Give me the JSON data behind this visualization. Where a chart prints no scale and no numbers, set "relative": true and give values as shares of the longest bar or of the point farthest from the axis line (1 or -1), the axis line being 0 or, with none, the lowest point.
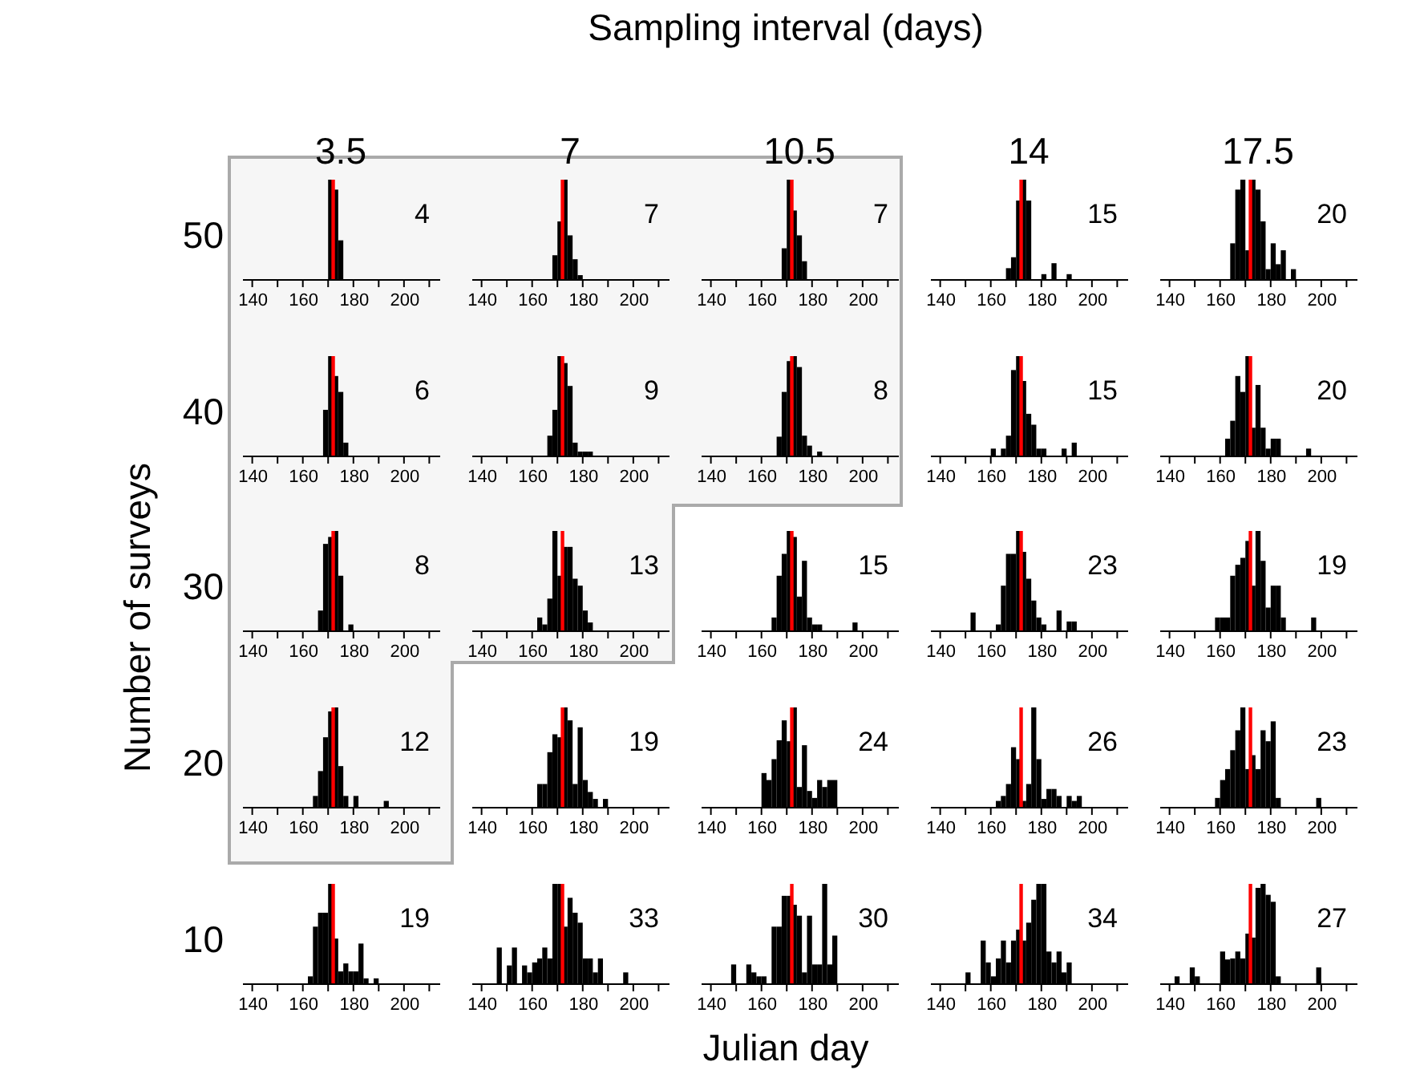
{
  "chart_data": [
    {
      "type": "other",
      "title": "Sampling interval (days)",
      "xlabel": "Julian day",
      "ylabel": "Number of surveys"
    },
    {
      "type": "bar",
      "relative": true,
      "title": "3.5",
      "ylabel": "50",
      "color": "#000000",
      "x": [
        171,
        173,
        175
      ],
      "values": [
        1,
        0.9,
        0.39
      ],
      "xlim": [
        136,
        214
      ],
      "xticks": [
        140,
        {
          "value": 150,
          "label": null
        },
        160,
        {
          "value": 170,
          "label": null
        },
        180,
        {
          "value": 190,
          "label": null
        },
        200,
        {
          "value": 210,
          "label": null
        }
      ],
      "ref_lines": [
        {
          "axis": "x",
          "value": 172,
          "color": "#ff0000"
        }
      ],
      "annotations": [
        "4"
      ]
    },
    {
      "type": "bar",
      "relative": true,
      "title": "7",
      "color": "#000000",
      "x": [
        169,
        171,
        173,
        175,
        177,
        179
      ],
      "values": [
        0.24,
        0.58,
        1,
        0.44,
        0.2,
        0.04
      ],
      "xlim": [
        136,
        214
      ],
      "xticks": [
        140,
        {
          "value": 150,
          "label": null
        },
        160,
        {
          "value": 170,
          "label": null
        },
        180,
        {
          "value": 190,
          "label": null
        },
        200,
        {
          "value": 210,
          "label": null
        }
      ],
      "ref_lines": [
        {
          "axis": "x",
          "value": 172,
          "color": "#ff0000"
        }
      ],
      "annotations": [
        "7"
      ]
    },
    {
      "type": "bar",
      "relative": true,
      "title": "10.5",
      "color": "#000000",
      "x": [
        169,
        171,
        173,
        175,
        177
      ],
      "values": [
        0.31,
        1,
        0.69,
        0.44,
        0.18
      ],
      "xlim": [
        136,
        214
      ],
      "xticks": [
        140,
        {
          "value": 150,
          "label": null
        },
        160,
        {
          "value": 170,
          "label": null
        },
        180,
        {
          "value": 190,
          "label": null
        },
        200,
        {
          "value": 210,
          "label": null
        }
      ],
      "ref_lines": [
        {
          "axis": "x",
          "value": 172,
          "color": "#ff0000"
        }
      ],
      "annotations": [
        "7"
      ]
    },
    {
      "type": "bar",
      "relative": true,
      "title": "14",
      "color": "#000000",
      "x": [
        167,
        169,
        171,
        173,
        175,
        177,
        179,
        181,
        183,
        185,
        187,
        189,
        191
      ],
      "values": [
        0.11,
        0.22,
        0.79,
        1,
        0.79,
        0,
        0,
        0.05,
        0,
        0.16,
        0,
        0,
        0.05
      ],
      "xlim": [
        136,
        214
      ],
      "xticks": [
        140,
        {
          "value": 150,
          "label": null
        },
        160,
        {
          "value": 170,
          "label": null
        },
        180,
        {
          "value": 190,
          "label": null
        },
        200,
        {
          "value": 210,
          "label": null
        }
      ],
      "ref_lines": [
        {
          "axis": "x",
          "value": 172,
          "color": "#ff0000"
        }
      ],
      "annotations": [
        "15"
      ]
    },
    {
      "type": "bar",
      "relative": true,
      "title": "17.5",
      "color": "#000000",
      "x": [
        165,
        167,
        169,
        171,
        173,
        175,
        177,
        179,
        181,
        183,
        185,
        187,
        189
      ],
      "values": [
        0.36,
        0.9,
        1,
        0.29,
        1,
        0.9,
        0.58,
        0.1,
        0.36,
        0.15,
        0.29,
        0,
        0.1
      ],
      "xlim": [
        136,
        214
      ],
      "xticks": [
        140,
        {
          "value": 150,
          "label": null
        },
        160,
        {
          "value": 170,
          "label": null
        },
        180,
        {
          "value": 190,
          "label": null
        },
        200,
        {
          "value": 210,
          "label": null
        }
      ],
      "ref_lines": [
        {
          "axis": "x",
          "value": 172,
          "color": "#ff0000"
        }
      ],
      "annotations": [
        "20"
      ]
    },
    {
      "type": "bar",
      "relative": true,
      "ylabel": "40",
      "color": "#000000",
      "x": [
        169,
        171,
        173,
        175,
        177
      ],
      "values": [
        0.46,
        1,
        0.8,
        0.64,
        0.13
      ],
      "xlim": [
        136,
        214
      ],
      "xticks": [
        140,
        {
          "value": 150,
          "label": null
        },
        160,
        {
          "value": 170,
          "label": null
        },
        180,
        {
          "value": 190,
          "label": null
        },
        200,
        {
          "value": 210,
          "label": null
        }
      ],
      "ref_lines": [
        {
          "axis": "x",
          "value": 172,
          "color": "#ff0000"
        }
      ],
      "annotations": [
        "6"
      ]
    },
    {
      "type": "bar",
      "relative": true,
      "color": "#000000",
      "x": [
        167,
        169,
        171,
        173,
        175,
        177,
        179,
        181,
        183
      ],
      "values": [
        0.2,
        0.46,
        1,
        0.93,
        0.7,
        0.13,
        0.04,
        0.04,
        0.04
      ],
      "xlim": [
        136,
        214
      ],
      "xticks": [
        140,
        {
          "value": 150,
          "label": null
        },
        160,
        {
          "value": 170,
          "label": null
        },
        180,
        {
          "value": 190,
          "label": null
        },
        200,
        {
          "value": 210,
          "label": null
        }
      ],
      "ref_lines": [
        {
          "axis": "x",
          "value": 172,
          "color": "#ff0000"
        }
      ],
      "annotations": [
        "9"
      ]
    },
    {
      "type": "bar",
      "relative": true,
      "color": "#000000",
      "x": [
        167,
        169,
        171,
        173,
        175,
        177,
        179,
        181,
        183
      ],
      "values": [
        0.19,
        0.64,
        0.95,
        1,
        0.89,
        0.2,
        0.1,
        0,
        0.04
      ],
      "xlim": [
        136,
        214
      ],
      "xticks": [
        140,
        {
          "value": 150,
          "label": null
        },
        160,
        {
          "value": 170,
          "label": null
        },
        180,
        {
          "value": 190,
          "label": null
        },
        200,
        {
          "value": 210,
          "label": null
        }
      ],
      "ref_lines": [
        {
          "axis": "x",
          "value": 172,
          "color": "#ff0000"
        }
      ],
      "annotations": [
        "8"
      ]
    },
    {
      "type": "bar",
      "relative": true,
      "color": "#000000",
      "x": [
        161,
        163,
        165,
        167,
        169,
        171,
        173,
        175,
        177,
        179,
        181,
        183,
        185,
        187,
        189,
        191,
        193
      ],
      "values": [
        0.07,
        0,
        0.07,
        0.2,
        0.86,
        1,
        0.75,
        0.42,
        0.31,
        0.07,
        0.07,
        0,
        0,
        0,
        0.07,
        0,
        0.13
      ],
      "xlim": [
        136,
        214
      ],
      "xticks": [
        140,
        {
          "value": 150,
          "label": null
        },
        160,
        {
          "value": 170,
          "label": null
        },
        180,
        {
          "value": 190,
          "label": null
        },
        200,
        {
          "value": 210,
          "label": null
        }
      ],
      "ref_lines": [
        {
          "axis": "x",
          "value": 172,
          "color": "#ff0000"
        }
      ],
      "annotations": [
        "15"
      ]
    },
    {
      "type": "bar",
      "relative": true,
      "color": "#000000",
      "x": [
        163,
        165,
        167,
        169,
        171,
        173,
        175,
        177,
        179,
        181,
        183,
        185,
        187,
        189,
        191,
        193,
        195
      ],
      "values": [
        0.17,
        0.35,
        0.8,
        0.64,
        1,
        0.28,
        0.71,
        0.28,
        0.07,
        0.17,
        0.17,
        0,
        0,
        0,
        0,
        0,
        0.07
      ],
      "xlim": [
        136,
        214
      ],
      "xticks": [
        140,
        {
          "value": 150,
          "label": null
        },
        160,
        {
          "value": 170,
          "label": null
        },
        180,
        {
          "value": 190,
          "label": null
        },
        200,
        {
          "value": 210,
          "label": null
        }
      ],
      "ref_lines": [
        {
          "axis": "x",
          "value": 172,
          "color": "#ff0000"
        }
      ],
      "annotations": [
        "20"
      ]
    },
    {
      "type": "bar",
      "relative": true,
      "ylabel": "30",
      "color": "#000000",
      "x": [
        167,
        169,
        171,
        173,
        175,
        177,
        179
      ],
      "values": [
        0.2,
        0.87,
        0.94,
        1,
        0.55,
        0,
        0.06
      ],
      "xlim": [
        136,
        214
      ],
      "xticks": [
        140,
        {
          "value": 150,
          "label": null
        },
        160,
        {
          "value": 170,
          "label": null
        },
        180,
        {
          "value": 190,
          "label": null
        },
        200,
        {
          "value": 210,
          "label": null
        }
      ],
      "ref_lines": [
        {
          "axis": "x",
          "value": 172,
          "color": "#ff0000"
        }
      ],
      "annotations": [
        "8"
      ]
    },
    {
      "type": "bar",
      "relative": true,
      "color": "#000000",
      "x": [
        163,
        165,
        167,
        169,
        171,
        173,
        175,
        177,
        179,
        181,
        183
      ],
      "values": [
        0.13,
        0.06,
        0.32,
        1,
        0.55,
        0.84,
        0.84,
        0.52,
        0.45,
        0.2,
        0.08
      ],
      "xlim": [
        136,
        214
      ],
      "xticks": [
        140,
        {
          "value": 150,
          "label": null
        },
        160,
        {
          "value": 170,
          "label": null
        },
        180,
        {
          "value": 190,
          "label": null
        },
        200,
        {
          "value": 210,
          "label": null
        }
      ],
      "ref_lines": [
        {
          "axis": "x",
          "value": 172,
          "color": "#ff0000"
        }
      ],
      "annotations": [
        "13"
      ]
    },
    {
      "type": "bar",
      "relative": true,
      "color": "#000000",
      "x": [
        165,
        167,
        169,
        171,
        173,
        175,
        177,
        179,
        181,
        183,
        185,
        187,
        189,
        191,
        193,
        195,
        197
      ],
      "values": [
        0.13,
        0.55,
        0.77,
        1,
        0.94,
        0.34,
        0.7,
        0.13,
        0.06,
        0.06,
        0,
        0,
        0,
        0,
        0,
        0,
        0.08
      ],
      "xlim": [
        136,
        214
      ],
      "xticks": [
        140,
        {
          "value": 150,
          "label": null
        },
        160,
        {
          "value": 170,
          "label": null
        },
        180,
        {
          "value": 190,
          "label": null
        },
        200,
        {
          "value": 210,
          "label": null
        }
      ],
      "ref_lines": [
        {
          "axis": "x",
          "value": 172,
          "color": "#ff0000"
        }
      ],
      "annotations": [
        "15"
      ]
    },
    {
      "type": "bar",
      "relative": true,
      "color": "#000000",
      "x": [
        153,
        155,
        157,
        159,
        161,
        163,
        165,
        167,
        169,
        171,
        173,
        175,
        177,
        179,
        181,
        183,
        185,
        187,
        189,
        191,
        193
      ],
      "values": [
        0.18,
        0,
        0,
        0,
        0,
        0.06,
        0.45,
        0.77,
        0.77,
        1,
        0.79,
        0.52,
        0.3,
        0.13,
        0.06,
        0,
        0,
        0.2,
        0,
        0.09,
        0.09
      ],
      "xlim": [
        136,
        214
      ],
      "xticks": [
        140,
        {
          "value": 150,
          "label": null
        },
        160,
        {
          "value": 170,
          "label": null
        },
        180,
        {
          "value": 190,
          "label": null
        },
        200,
        {
          "value": 210,
          "label": null
        }
      ],
      "ref_lines": [
        {
          "axis": "x",
          "value": 172,
          "color": "#ff0000"
        }
      ],
      "annotations": [
        "23"
      ]
    },
    {
      "type": "bar",
      "relative": true,
      "color": "#000000",
      "x": [
        159,
        161,
        163,
        165,
        167,
        169,
        171,
        173,
        175,
        177,
        179,
        181,
        183,
        185,
        187,
        189,
        191,
        193,
        195,
        197
      ],
      "values": [
        0.13,
        0.13,
        0.13,
        0.55,
        0.66,
        0.73,
        0.9,
        0.45,
        1,
        0.7,
        0.23,
        0.45,
        0.45,
        0.13,
        0,
        0,
        0,
        0,
        0,
        0.13
      ],
      "xlim": [
        136,
        214
      ],
      "xticks": [
        140,
        {
          "value": 150,
          "label": null
        },
        160,
        {
          "value": 170,
          "label": null
        },
        180,
        {
          "value": 190,
          "label": null
        },
        200,
        {
          "value": 210,
          "label": null
        }
      ],
      "ref_lines": [
        {
          "axis": "x",
          "value": 172,
          "color": "#ff0000"
        }
      ],
      "annotations": [
        "19"
      ]
    },
    {
      "type": "bar",
      "relative": true,
      "ylabel": "20",
      "color": "#000000",
      "x": [
        165,
        167,
        169,
        171,
        173,
        175,
        177,
        179,
        181,
        183,
        185,
        187,
        189,
        191,
        193
      ],
      "values": [
        0.11,
        0.36,
        0.7,
        0.96,
        1,
        0.41,
        0.11,
        0,
        0.11,
        0,
        0,
        0,
        0,
        0,
        0.06
      ],
      "xlim": [
        136,
        214
      ],
      "xticks": [
        140,
        {
          "value": 150,
          "label": null
        },
        160,
        {
          "value": 170,
          "label": null
        },
        180,
        {
          "value": 190,
          "label": null
        },
        200,
        {
          "value": 210,
          "label": null
        }
      ],
      "ref_lines": [
        {
          "axis": "x",
          "value": 172,
          "color": "#ff0000"
        }
      ],
      "annotations": [
        "12"
      ]
    },
    {
      "type": "bar",
      "relative": true,
      "color": "#000000",
      "x": [
        163,
        165,
        167,
        169,
        171,
        173,
        175,
        177,
        179,
        181,
        183,
        185,
        187,
        189
      ],
      "values": [
        0.23,
        0.23,
        0.55,
        0.73,
        0.7,
        1,
        0.87,
        0.23,
        0.8,
        0.27,
        0.15,
        0.08,
        0,
        0.08
      ],
      "xlim": [
        136,
        214
      ],
      "xticks": [
        140,
        {
          "value": 150,
          "label": null
        },
        160,
        {
          "value": 170,
          "label": null
        },
        180,
        {
          "value": 190,
          "label": null
        },
        200,
        {
          "value": 210,
          "label": null
        }
      ],
      "ref_lines": [
        {
          "axis": "x",
          "value": 172,
          "color": "#ff0000"
        }
      ],
      "annotations": [
        "19"
      ]
    },
    {
      "type": "bar",
      "relative": true,
      "color": "#000000",
      "x": [
        161,
        163,
        165,
        167,
        169,
        171,
        173,
        175,
        177,
        179,
        181,
        183,
        185,
        187,
        189
      ],
      "values": [
        0.34,
        0.27,
        0.48,
        0.67,
        0.87,
        0.66,
        1,
        0.2,
        0.62,
        0.16,
        0.09,
        0.27,
        0.2,
        0.27,
        0.27
      ],
      "xlim": [
        136,
        214
      ],
      "xticks": [
        140,
        {
          "value": 150,
          "label": null
        },
        160,
        {
          "value": 170,
          "label": null
        },
        180,
        {
          "value": 190,
          "label": null
        },
        200,
        {
          "value": 210,
          "label": null
        }
      ],
      "ref_lines": [
        {
          "axis": "x",
          "value": 172,
          "color": "#ff0000"
        }
      ],
      "annotations": [
        "24"
      ]
    },
    {
      "type": "bar",
      "relative": true,
      "color": "#000000",
      "x": [
        163,
        165,
        167,
        169,
        171,
        173,
        175,
        177,
        179,
        181,
        183,
        185,
        187,
        189,
        191,
        193,
        195
      ],
      "values": [
        0.06,
        0.11,
        0.23,
        0.6,
        0.48,
        0.06,
        0.23,
        1,
        0.48,
        0.08,
        0.18,
        0.18,
        0.11,
        0,
        0.11,
        0.06,
        0.11
      ],
      "xlim": [
        136,
        214
      ],
      "xticks": [
        140,
        {
          "value": 150,
          "label": null
        },
        160,
        {
          "value": 170,
          "label": null
        },
        180,
        {
          "value": 190,
          "label": null
        },
        200,
        {
          "value": 210,
          "label": null
        }
      ],
      "ref_lines": [
        {
          "axis": "x",
          "value": 172,
          "color": "#ff0000"
        }
      ],
      "annotations": [
        "26"
      ]
    },
    {
      "type": "bar",
      "relative": true,
      "color": "#000000",
      "x": [
        159,
        161,
        163,
        165,
        167,
        169,
        171,
        173,
        175,
        177,
        179,
        181,
        183,
        185,
        187,
        189,
        191,
        193,
        195,
        197,
        199
      ],
      "values": [
        0.09,
        0.27,
        0.38,
        0.57,
        0.77,
        1,
        0.38,
        0.52,
        0.38,
        0.77,
        0.66,
        0.86,
        0.09,
        0,
        0,
        0,
        0,
        0,
        0,
        0,
        0.09
      ],
      "xlim": [
        136,
        214
      ],
      "xticks": [
        140,
        {
          "value": 150,
          "label": null
        },
        160,
        {
          "value": 170,
          "label": null
        },
        180,
        {
          "value": 190,
          "label": null
        },
        200,
        {
          "value": 210,
          "label": null
        }
      ],
      "ref_lines": [
        {
          "axis": "x",
          "value": 172,
          "color": "#ff0000"
        }
      ],
      "annotations": [
        "23"
      ]
    },
    {
      "type": "bar",
      "relative": true,
      "ylabel": "10",
      "color": "#000000",
      "x": [
        163,
        165,
        167,
        169,
        171,
        173,
        175,
        177,
        179,
        181,
        183,
        185,
        187,
        189
      ],
      "values": [
        0.07,
        0.57,
        0.71,
        0.71,
        1,
        0.45,
        0.12,
        0.2,
        0.12,
        0.12,
        0.4,
        0.05,
        0,
        0.05
      ],
      "xlim": [
        136,
        214
      ],
      "xticks": [
        140,
        {
          "value": 150,
          "label": null
        },
        160,
        {
          "value": 170,
          "label": null
        },
        180,
        {
          "value": 190,
          "label": null
        },
        200,
        {
          "value": 210,
          "label": null
        }
      ],
      "ref_lines": [
        {
          "axis": "x",
          "value": 172,
          "color": "#ff0000"
        }
      ],
      "annotations": [
        "19"
      ]
    },
    {
      "type": "bar",
      "relative": true,
      "color": "#000000",
      "x": [
        147,
        149,
        151,
        153,
        155,
        157,
        159,
        161,
        163,
        165,
        167,
        169,
        171,
        173,
        175,
        177,
        179,
        181,
        183,
        185,
        187,
        189,
        191,
        193,
        195,
        197
      ],
      "values": [
        0.36,
        0,
        0.18,
        0.36,
        0,
        0.18,
        0.11,
        0.21,
        0.25,
        0.36,
        0.25,
        1,
        1,
        0.57,
        0.86,
        0.71,
        0.61,
        0.25,
        0.25,
        0.11,
        0.25,
        0,
        0,
        0,
        0,
        0.11
      ],
      "xlim": [
        136,
        214
      ],
      "xticks": [
        140,
        {
          "value": 150,
          "label": null
        },
        160,
        {
          "value": 170,
          "label": null
        },
        180,
        {
          "value": 190,
          "label": null
        },
        200,
        {
          "value": 210,
          "label": null
        }
      ],
      "ref_lines": [
        {
          "axis": "x",
          "value": 172,
          "color": "#ff0000"
        }
      ],
      "annotations": [
        "33"
      ]
    },
    {
      "type": "bar",
      "relative": true,
      "color": "#000000",
      "x": [
        149,
        151,
        153,
        155,
        157,
        159,
        161,
        163,
        165,
        167,
        169,
        171,
        173,
        175,
        177,
        179,
        181,
        183,
        185,
        187,
        189
      ],
      "values": [
        0.19,
        0,
        0,
        0.19,
        0.11,
        0.07,
        0.07,
        0,
        0.57,
        0.57,
        0.88,
        0.88,
        0.79,
        0.68,
        0.11,
        0.68,
        0.19,
        0.19,
        1,
        0.19,
        0.48
      ],
      "xlim": [
        136,
        214
      ],
      "xticks": [
        140,
        {
          "value": 150,
          "label": null
        },
        160,
        {
          "value": 170,
          "label": null
        },
        180,
        {
          "value": 190,
          "label": null
        },
        200,
        {
          "value": 210,
          "label": null
        }
      ],
      "ref_lines": [
        {
          "axis": "x",
          "value": 172,
          "color": "#ff0000"
        }
      ],
      "annotations": [
        "30"
      ]
    },
    {
      "type": "bar",
      "relative": true,
      "color": "#000000",
      "x": [
        151,
        153,
        155,
        157,
        159,
        161,
        163,
        165,
        167,
        169,
        171,
        173,
        175,
        177,
        179,
        181,
        183,
        185,
        187,
        189,
        191
      ],
      "values": [
        0.11,
        0,
        0,
        0.43,
        0.21,
        0.07,
        0.25,
        0.43,
        0.21,
        0.43,
        0.54,
        0.43,
        0.61,
        0.84,
        1,
        1,
        0.32,
        0.21,
        0.32,
        0.11,
        0.21
      ],
      "xlim": [
        136,
        214
      ],
      "xticks": [
        140,
        {
          "value": 150,
          "label": null
        },
        160,
        {
          "value": 170,
          "label": null
        },
        180,
        {
          "value": 190,
          "label": null
        },
        200,
        {
          "value": 210,
          "label": null
        }
      ],
      "ref_lines": [
        {
          "axis": "x",
          "value": 172,
          "color": "#ff0000"
        }
      ],
      "annotations": [
        "34"
      ]
    },
    {
      "type": "bar",
      "relative": true,
      "color": "#000000",
      "x": [
        143,
        145,
        147,
        149,
        151,
        153,
        155,
        157,
        159,
        161,
        163,
        165,
        167,
        169,
        171,
        173,
        175,
        177,
        179,
        181,
        183,
        185,
        187,
        189,
        191,
        193,
        195,
        197,
        199
      ],
      "values": [
        0.07,
        0,
        0,
        0.16,
        0.07,
        0,
        0,
        0,
        0,
        0.32,
        0.24,
        0.25,
        0.32,
        0.25,
        0.5,
        0.46,
        0.96,
        1,
        0.89,
        0.82,
        0.07,
        0,
        0,
        0,
        0,
        0,
        0,
        0,
        0.16
      ],
      "xlim": [
        136,
        214
      ],
      "xticks": [
        140,
        {
          "value": 150,
          "label": null
        },
        160,
        {
          "value": 170,
          "label": null
        },
        180,
        {
          "value": 190,
          "label": null
        },
        200,
        {
          "value": 210,
          "label": null
        }
      ],
      "ref_lines": [
        {
          "axis": "x",
          "value": 172,
          "color": "#ff0000"
        }
      ],
      "annotations": [
        "27"
      ]
    }
  ]
}
